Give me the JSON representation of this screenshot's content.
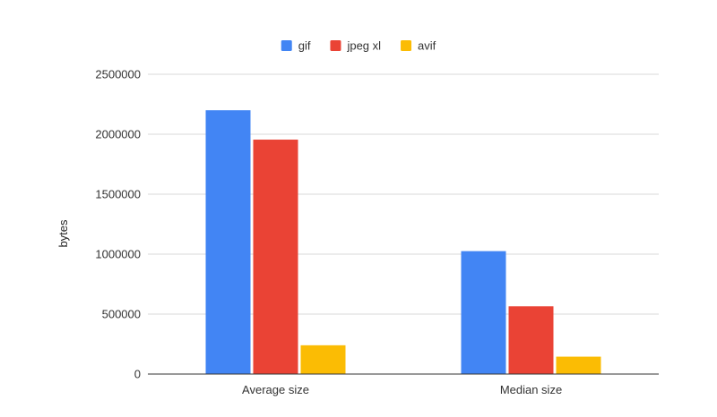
{
  "chart_data": {
    "type": "bar",
    "title": "",
    "xlabel": "",
    "ylabel": "bytes",
    "categories": [
      "Average size",
      "Median size"
    ],
    "series": [
      {
        "name": "gif",
        "color": "#4285f4",
        "values": [
          2200000,
          1025000
        ]
      },
      {
        "name": "jpeg xl",
        "color": "#ea4335",
        "values": [
          1955000,
          565000
        ]
      },
      {
        "name": "avif",
        "color": "#fbbc04",
        "values": [
          240000,
          145000
        ]
      }
    ],
    "ylim": [
      0,
      2500000
    ],
    "yticks": [
      "0",
      "500000",
      "1000000",
      "1500000",
      "2000000",
      "2500000"
    ],
    "grid": true,
    "legend_position": "top-center"
  }
}
